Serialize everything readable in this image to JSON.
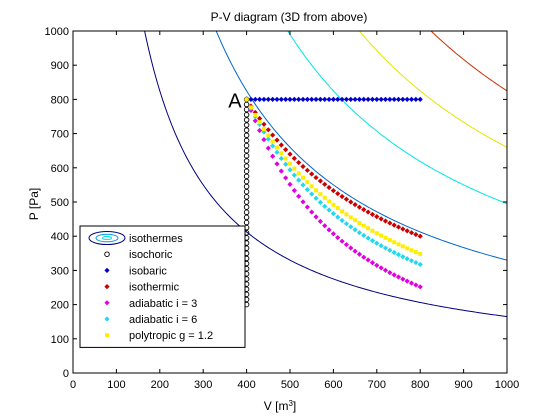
{
  "chart_data": {
    "type": "scatter",
    "title": "P-V diagram (3D from above)",
    "xlabel": "V [m",
    "xlabel_sup": "3",
    "xlabel_end": "]",
    "ylabel": "P [Pa]",
    "xlim": [
      0,
      1000
    ],
    "ylim": [
      0,
      1000
    ],
    "x_ticks": [
      0,
      100,
      200,
      300,
      400,
      500,
      600,
      700,
      800,
      900,
      1000
    ],
    "y_ticks": [
      0,
      100,
      200,
      300,
      400,
      500,
      600,
      700,
      800,
      900,
      1000
    ],
    "grid": false,
    "legend_position": "bottom-left",
    "annotation": {
      "text": "A",
      "x": 400,
      "y": 800
    },
    "isotherms": [
      {
        "pv_constant": 165000,
        "color": "#00007f"
      },
      {
        "pv_constant": 330000,
        "color": "#0066cc"
      },
      {
        "pv_constant": 495000,
        "color": "#00e5e5"
      },
      {
        "pv_constant": 660000,
        "color": "#e5e500"
      },
      {
        "pv_constant": 825000,
        "color": "#cc3300"
      }
    ],
    "series": [
      {
        "name": "isothermes",
        "marker": "contour",
        "color": "#0070c0"
      },
      {
        "name": "isochoric",
        "marker": "circle",
        "color": "#000000",
        "start": [
          400,
          800
        ],
        "end": [
          400,
          200
        ],
        "points": 41
      },
      {
        "name": "isobaric",
        "marker": "diamond",
        "color": "#0000cc",
        "start": [
          400,
          800
        ],
        "end": [
          800,
          800
        ],
        "points": 41
      },
      {
        "name": "isothermic",
        "marker": "diamond",
        "color": "#cc0000",
        "start": [
          400,
          800
        ],
        "end": [
          800,
          400
        ],
        "points": 41,
        "exponent": 1.0
      },
      {
        "name": "adiabatic i = 3",
        "marker": "diamond",
        "color": "#e000e0",
        "start": [
          400,
          800
        ],
        "end": [
          800,
          252
        ],
        "points": 41,
        "exponent": 1.6667
      },
      {
        "name": "adiabatic i = 6",
        "marker": "diamond",
        "color": "#22d8ee",
        "start": [
          400,
          800
        ],
        "end": [
          800,
          317
        ],
        "points": 41,
        "exponent": 1.3333
      },
      {
        "name": "polytropic g = 1.2",
        "marker": "square",
        "color": "#ffee00",
        "start": [
          400,
          800
        ],
        "end": [
          800,
          348
        ],
        "points": 41,
        "exponent": 1.2
      }
    ]
  }
}
